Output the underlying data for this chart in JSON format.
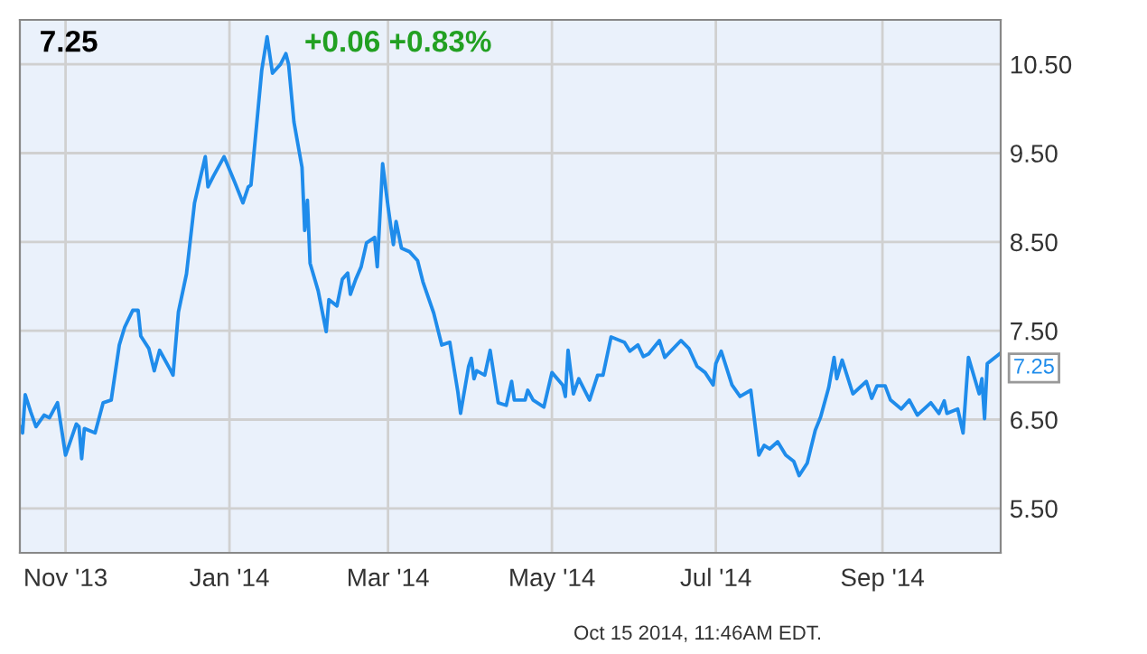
{
  "chart_data": {
    "type": "line",
    "title": "7.25",
    "subtitle": "+0.06 +0.83%",
    "annotations": [
      "Oct 15 2014, 11:46AM EDT.",
      {
        "text": "7.25",
        "x": "2014-10-15",
        "y": 7.25
      }
    ],
    "x": [
      "2013-10-15",
      "2013-10-16",
      "2013-10-17",
      "2013-10-19",
      "2013-10-21",
      "2013-10-24",
      "2013-10-26",
      "2013-10-29",
      "2013-11-01",
      "2013-11-05",
      "2013-11-06",
      "2013-11-07",
      "2013-11-08",
      "2013-11-12",
      "2013-11-15",
      "2013-11-18",
      "2013-11-21",
      "2013-11-23",
      "2013-11-26",
      "2013-11-28",
      "2013-11-29",
      "2013-12-02",
      "2013-12-04",
      "2013-12-06",
      "2013-12-10",
      "2013-12-11",
      "2013-12-13",
      "2013-12-16",
      "2013-12-19",
      "2013-12-23",
      "2013-12-24",
      "2013-12-26",
      "2013-12-30",
      "2014-01-03",
      "2014-01-06",
      "2014-01-08",
      "2014-01-09",
      "2014-01-13",
      "2014-01-15",
      "2014-01-17",
      "2014-01-20",
      "2014-01-22",
      "2014-01-23",
      "2014-01-25",
      "2014-01-28",
      "2014-01-29",
      "2014-01-30",
      "2014-01-31",
      "2014-02-03",
      "2014-02-06",
      "2014-02-07",
      "2014-02-10",
      "2014-02-12",
      "2014-02-14",
      "2014-02-15",
      "2014-02-17",
      "2014-02-19",
      "2014-02-21",
      "2014-02-24",
      "2014-02-25",
      "2014-02-27",
      "2014-03-01",
      "2014-03-03",
      "2014-03-04",
      "2014-03-06",
      "2014-03-09",
      "2014-03-12",
      "2014-03-14",
      "2014-03-18",
      "2014-03-21",
      "2014-03-24",
      "2014-03-27",
      "2014-03-28",
      "2014-03-31",
      "2014-04-01",
      "2014-04-02",
      "2014-04-03",
      "2014-04-06",
      "2014-04-08",
      "2014-04-11",
      "2014-04-14",
      "2014-04-16",
      "2014-04-17",
      "2014-04-21",
      "2014-04-22",
      "2014-04-24",
      "2014-04-28",
      "2014-05-01",
      "2014-05-05",
      "2014-05-06",
      "2014-05-07",
      "2014-05-09",
      "2014-05-11",
      "2014-05-15",
      "2014-05-18",
      "2014-05-20",
      "2014-05-23",
      "2014-05-28",
      "2014-05-30",
      "2014-06-02",
      "2014-06-04",
      "2014-06-06",
      "2014-06-10",
      "2014-06-12",
      "2014-06-18",
      "2014-06-21",
      "2014-06-24",
      "2014-06-27",
      "2014-06-30",
      "2014-07-01",
      "2014-07-03",
      "2014-07-07",
      "2014-07-10",
      "2014-07-14",
      "2014-07-17",
      "2014-07-19",
      "2014-07-21",
      "2014-07-24",
      "2014-07-27",
      "2014-07-30",
      "2014-08-01",
      "2014-08-04",
      "2014-08-07",
      "2014-08-09",
      "2014-08-12",
      "2014-08-14",
      "2014-08-15",
      "2014-08-17",
      "2014-08-21",
      "2014-08-26",
      "2014-08-28",
      "2014-08-30",
      "2014-09-02",
      "2014-09-04",
      "2014-09-08",
      "2014-09-11",
      "2014-09-14",
      "2014-09-19",
      "2014-09-22",
      "2014-09-24",
      "2014-09-25",
      "2014-09-29",
      "2014-10-01",
      "2014-10-03",
      "2014-10-07",
      "2014-10-08",
      "2014-10-09",
      "2014-10-10",
      "2014-10-15"
    ],
    "series": [
      {
        "color": "#1f8ceb",
        "values": [
          6.42,
          6.35,
          6.78,
          6.59,
          6.42,
          6.55,
          6.52,
          6.69,
          6.1,
          6.45,
          6.42,
          6.06,
          6.4,
          6.35,
          6.69,
          6.72,
          7.34,
          7.54,
          7.73,
          7.73,
          7.44,
          7.3,
          7.05,
          7.28,
          7.06,
          7.0,
          7.71,
          8.14,
          8.94,
          9.46,
          9.12,
          9.24,
          9.46,
          9.17,
          8.94,
          9.12,
          9.14,
          10.43,
          10.81,
          10.4,
          10.5,
          10.62,
          10.5,
          9.85,
          9.34,
          8.63,
          8.97,
          8.26,
          7.95,
          7.49,
          7.85,
          7.78,
          8.08,
          8.15,
          7.91,
          8.08,
          8.22,
          8.49,
          8.55,
          8.22,
          9.38,
          8.9,
          8.47,
          8.73,
          8.43,
          8.39,
          8.29,
          8.05,
          7.7,
          7.34,
          7.37,
          6.81,
          6.57,
          7.1,
          7.19,
          6.96,
          7.05,
          7.0,
          7.28,
          6.69,
          6.66,
          6.93,
          6.72,
          6.72,
          6.83,
          6.72,
          6.64,
          7.03,
          6.89,
          6.76,
          7.28,
          6.79,
          6.96,
          6.72,
          7.0,
          7.0,
          7.43,
          7.37,
          7.27,
          7.34,
          7.21,
          7.24,
          7.39,
          7.2,
          7.39,
          7.3,
          7.1,
          7.03,
          6.89,
          7.13,
          7.27,
          6.89,
          6.76,
          6.83,
          6.1,
          6.21,
          6.17,
          6.25,
          6.1,
          6.03,
          5.87,
          6.01,
          6.38,
          6.53,
          6.86,
          7.2,
          6.96,
          7.17,
          6.79,
          6.93,
          6.74,
          6.88,
          6.88,
          6.72,
          6.62,
          6.72,
          6.55,
          6.69,
          6.57,
          6.71,
          6.57,
          6.62,
          6.35,
          7.2,
          6.79,
          6.96,
          6.51,
          7.13,
          7.25
        ]
      }
    ],
    "xlim": [
      "2013-10-15",
      "2014-10-15"
    ],
    "xticks": [
      {
        "value": "2013-11-01",
        "label": "Nov '13"
      },
      {
        "value": "2014-01-01",
        "label": "Jan '14"
      },
      {
        "value": "2014-03-01",
        "label": "Mar '14"
      },
      {
        "value": "2014-05-01",
        "label": "May '14"
      },
      {
        "value": "2014-07-01",
        "label": "Jul '14"
      },
      {
        "value": "2014-09-01",
        "label": "Sep '14"
      }
    ],
    "ylim": [
      5.0,
      11.0
    ],
    "yticks": [
      {
        "value": 5.5,
        "label": "5.50"
      },
      {
        "value": 6.5,
        "label": "6.50"
      },
      {
        "value": 7.5,
        "label": "7.50"
      },
      {
        "value": 8.5,
        "label": "8.50"
      },
      {
        "value": 9.5,
        "label": "9.50"
      },
      {
        "value": 10.5,
        "label": "10.50"
      }
    ],
    "grid": true,
    "legend": false,
    "marker": "none",
    "line_style": "solid"
  }
}
